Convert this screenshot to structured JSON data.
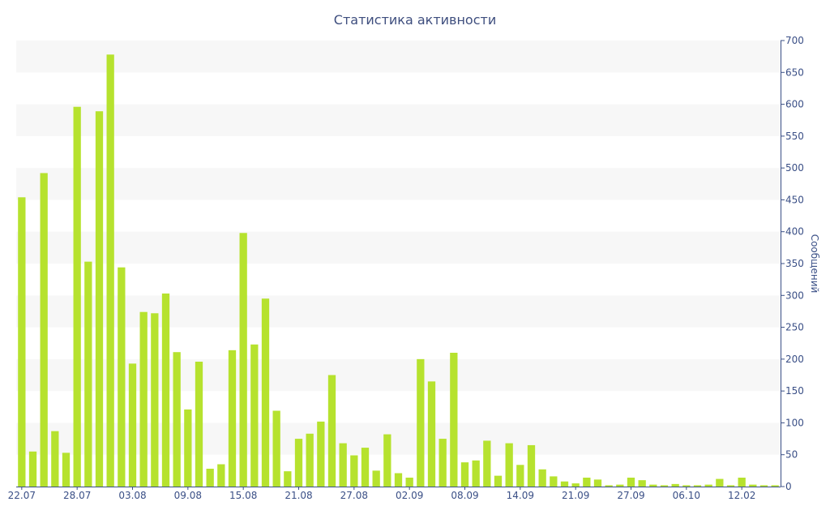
{
  "chart_data": {
    "type": "bar",
    "title": "Статистика активности",
    "ylabel": "Сообщений",
    "xlabel": "",
    "ylim": [
      0,
      700
    ],
    "y_ticks": [
      0,
      50,
      100,
      150,
      200,
      250,
      300,
      350,
      400,
      450,
      500,
      550,
      600,
      650,
      700
    ],
    "y_axis_side": "right",
    "grid": "alternating horizontal bands",
    "bar_color": "#b6e22e",
    "band_color": "#f7f7f7",
    "axis_color": "#3a4f86",
    "x_tick_labels": [
      {
        "label": "22.07",
        "index": 0
      },
      {
        "label": "28.07",
        "index": 5
      },
      {
        "label": "03.08",
        "index": 10
      },
      {
        "label": "09.08",
        "index": 15
      },
      {
        "label": "15.08",
        "index": 20
      },
      {
        "label": "21.08",
        "index": 25
      },
      {
        "label": "27.08",
        "index": 30
      },
      {
        "label": "02.09",
        "index": 35
      },
      {
        "label": "08.09",
        "index": 40
      },
      {
        "label": "14.09",
        "index": 45
      },
      {
        "label": "21.09",
        "index": 50
      },
      {
        "label": "27.09",
        "index": 55
      },
      {
        "label": "06.10",
        "index": 60
      },
      {
        "label": "12.02",
        "index": 65
      }
    ],
    "values": [
      454,
      55,
      492,
      87,
      53,
      596,
      353,
      589,
      678,
      344,
      193,
      274,
      272,
      303,
      211,
      121,
      196,
      28,
      35,
      214,
      398,
      223,
      295,
      119,
      24,
      75,
      83,
      102,
      175,
      68,
      49,
      61,
      25,
      82,
      21,
      14,
      200,
      165,
      75,
      210,
      38,
      41,
      72,
      17,
      68,
      34,
      65,
      27,
      16,
      8,
      5,
      14,
      11,
      2,
      3,
      14,
      10,
      3,
      2,
      4,
      2,
      2,
      3,
      12,
      2,
      14,
      3,
      2,
      2
    ]
  }
}
